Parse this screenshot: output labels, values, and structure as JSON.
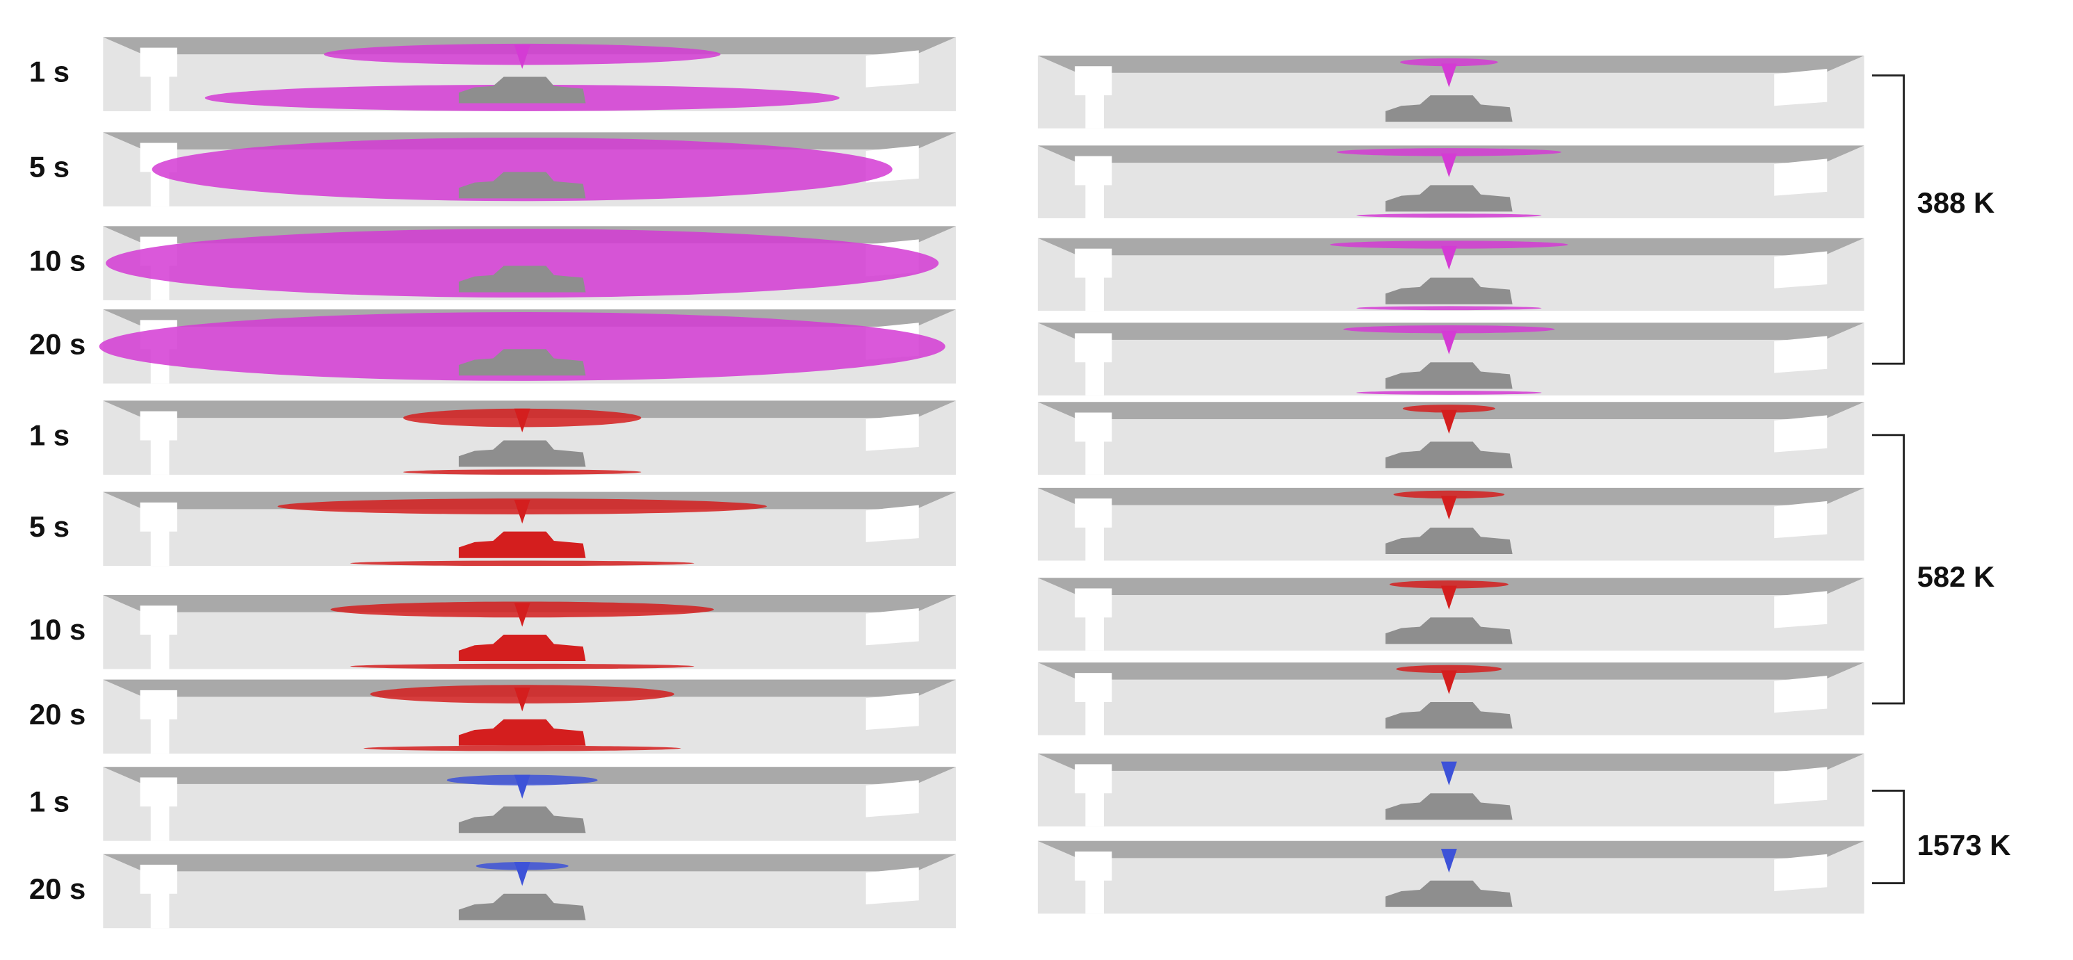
{
  "left_panels": {
    "labels": [
      "1 s",
      "5 s",
      "10 s",
      "20 s",
      "1 s",
      "5 s",
      "10 s",
      "20 s",
      "1 s",
      "20 s"
    ]
  },
  "right_groups": [
    {
      "label": "388 K"
    },
    {
      "label": "582 K"
    },
    {
      "label": "1573 K"
    }
  ]
}
